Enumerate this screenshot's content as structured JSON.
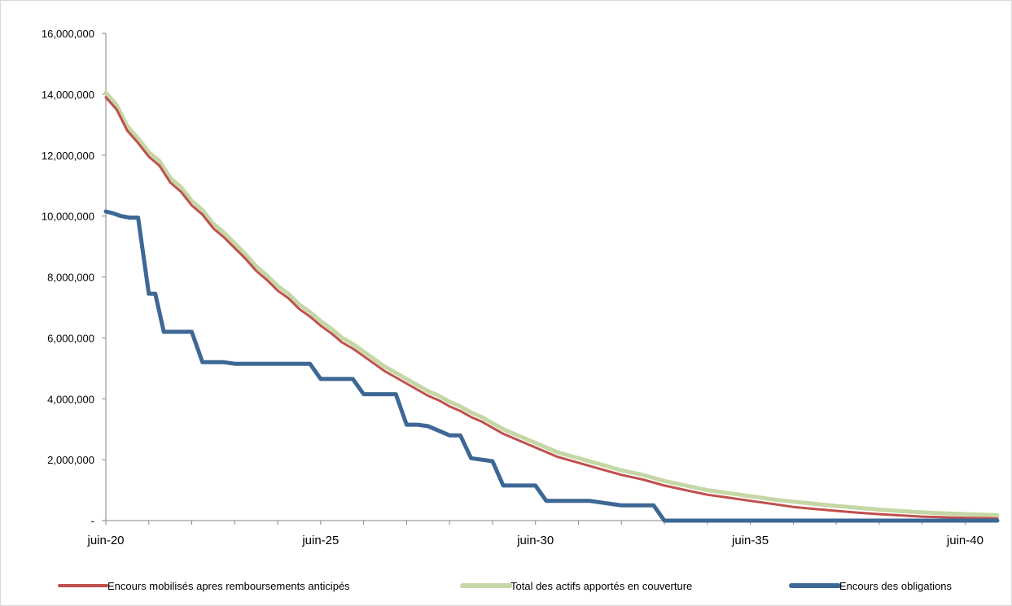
{
  "chart_data": {
    "type": "line",
    "title": "",
    "xlabel": "",
    "ylabel": "",
    "ylim": [
      0,
      16000000
    ],
    "y_ticks": [
      {
        "value": 0,
        "label": "-"
      },
      {
        "value": 2000000,
        "label": "2,000,000"
      },
      {
        "value": 4000000,
        "label": "4,000,000"
      },
      {
        "value": 6000000,
        "label": "6,000,000"
      },
      {
        "value": 8000000,
        "label": "8,000,000"
      },
      {
        "value": 10000000,
        "label": "10,000,000"
      },
      {
        "value": 12000000,
        "label": "12,000,000"
      },
      {
        "value": 14000000,
        "label": "14,000,000"
      },
      {
        "value": 16000000,
        "label": "16,000,000"
      }
    ],
    "xlim": [
      2020.45,
      2041.2
    ],
    "x_ticks": [
      {
        "value": 2020.45,
        "label": "juin-20"
      },
      {
        "value": 2025.45,
        "label": "juin-25"
      },
      {
        "value": 2030.45,
        "label": "juin-30"
      },
      {
        "value": 2035.45,
        "label": "juin-35"
      },
      {
        "value": 2040.45,
        "label": "juin-40"
      }
    ],
    "grid": false,
    "legend_position": "bottom",
    "series": [
      {
        "name": "Encours mobilisés apres remboursements anticipés",
        "color": "#c0504d",
        "stroke_width": 3,
        "x": [
          2020.45,
          2020.7,
          2020.95,
          2021.2,
          2021.45,
          2021.7,
          2021.95,
          2022.2,
          2022.45,
          2022.7,
          2022.95,
          2023.2,
          2023.45,
          2023.7,
          2023.95,
          2024.2,
          2024.45,
          2024.7,
          2024.95,
          2025.2,
          2025.45,
          2025.7,
          2025.95,
          2026.2,
          2026.45,
          2026.7,
          2026.95,
          2027.2,
          2027.45,
          2027.7,
          2027.95,
          2028.2,
          2028.45,
          2028.7,
          2028.95,
          2029.2,
          2029.45,
          2029.7,
          2029.95,
          2030.2,
          2030.45,
          2030.95,
          2031.45,
          2031.95,
          2032.45,
          2032.95,
          2033.45,
          2033.95,
          2034.45,
          2034.95,
          2035.45,
          2035.95,
          2036.45,
          2036.95,
          2037.45,
          2037.95,
          2038.45,
          2038.95,
          2039.45,
          2039.95,
          2040.45,
          2040.95,
          2041.2
        ],
        "y": [
          13900000,
          13500000,
          12800000,
          12400000,
          11950000,
          11650000,
          11100000,
          10800000,
          10350000,
          10050000,
          9600000,
          9300000,
          8950000,
          8600000,
          8200000,
          7900000,
          7550000,
          7300000,
          6950000,
          6700000,
          6400000,
          6150000,
          5850000,
          5650000,
          5400000,
          5150000,
          4900000,
          4700000,
          4500000,
          4300000,
          4100000,
          3950000,
          3750000,
          3600000,
          3400000,
          3250000,
          3050000,
          2850000,
          2700000,
          2550000,
          2400000,
          2100000,
          1900000,
          1700000,
          1500000,
          1350000,
          1150000,
          1000000,
          850000,
          750000,
          650000,
          550000,
          450000,
          380000,
          320000,
          260000,
          210000,
          170000,
          130000,
          110000,
          90000,
          80000,
          70000
        ]
      },
      {
        "name": "Total des actifs apportés en couverture",
        "color": "#c4d7a4",
        "stroke_width": 5,
        "x": [
          2020.45,
          2020.7,
          2020.95,
          2021.2,
          2021.45,
          2021.7,
          2021.95,
          2022.2,
          2022.45,
          2022.7,
          2022.95,
          2023.2,
          2023.45,
          2023.7,
          2023.95,
          2024.2,
          2024.45,
          2024.7,
          2024.95,
          2025.2,
          2025.45,
          2025.7,
          2025.95,
          2026.2,
          2026.45,
          2026.7,
          2026.95,
          2027.2,
          2027.45,
          2027.7,
          2027.95,
          2028.2,
          2028.45,
          2028.7,
          2028.95,
          2029.2,
          2029.45,
          2029.7,
          2029.95,
          2030.2,
          2030.45,
          2030.95,
          2031.45,
          2031.95,
          2032.45,
          2032.95,
          2033.45,
          2033.95,
          2034.45,
          2034.95,
          2035.45,
          2035.95,
          2036.45,
          2036.95,
          2037.45,
          2037.95,
          2038.45,
          2038.95,
          2039.45,
          2039.95,
          2040.45,
          2040.95,
          2041.2
        ],
        "y": [
          14050000,
          13650000,
          12950000,
          12550000,
          12100000,
          11800000,
          11250000,
          10950000,
          10500000,
          10200000,
          9750000,
          9450000,
          9100000,
          8750000,
          8350000,
          8050000,
          7700000,
          7450000,
          7100000,
          6850000,
          6550000,
          6300000,
          6000000,
          5800000,
          5550000,
          5300000,
          5050000,
          4850000,
          4650000,
          4450000,
          4250000,
          4100000,
          3900000,
          3750000,
          3550000,
          3400000,
          3200000,
          3000000,
          2850000,
          2700000,
          2550000,
          2250000,
          2050000,
          1850000,
          1650000,
          1500000,
          1300000,
          1150000,
          1000000,
          900000,
          800000,
          700000,
          620000,
          550000,
          480000,
          420000,
          360000,
          310000,
          270000,
          240000,
          210000,
          190000,
          180000
        ]
      },
      {
        "name": "Encours des obligations",
        "color": "#3d6795",
        "stroke_width": 5,
        "x": [
          2020.45,
          2020.6,
          2020.8,
          2021.0,
          2021.2,
          2021.45,
          2021.6,
          2021.8,
          2022.0,
          2022.45,
          2022.7,
          2022.95,
          2023.2,
          2023.45,
          2023.7,
          2024.95,
          2025.2,
          2025.45,
          2026.2,
          2026.45,
          2027.2,
          2027.45,
          2027.7,
          2027.95,
          2028.45,
          2028.7,
          2028.95,
          2029.45,
          2029.7,
          2030.45,
          2030.7,
          2031.45,
          2031.7,
          2032.45,
          2032.7,
          2033.2,
          2033.45,
          2041.2
        ],
        "y": [
          10150000,
          10100000,
          10000000,
          9950000,
          9950000,
          7450000,
          7450000,
          6200000,
          6200000,
          6200000,
          5200000,
          5200000,
          5200000,
          5150000,
          5150000,
          5150000,
          5150000,
          4650000,
          4650000,
          4150000,
          4150000,
          3150000,
          3150000,
          3100000,
          2800000,
          2800000,
          2050000,
          1950000,
          1150000,
          1150000,
          650000,
          650000,
          650000,
          500000,
          500000,
          500000,
          0,
          0
        ]
      }
    ]
  }
}
